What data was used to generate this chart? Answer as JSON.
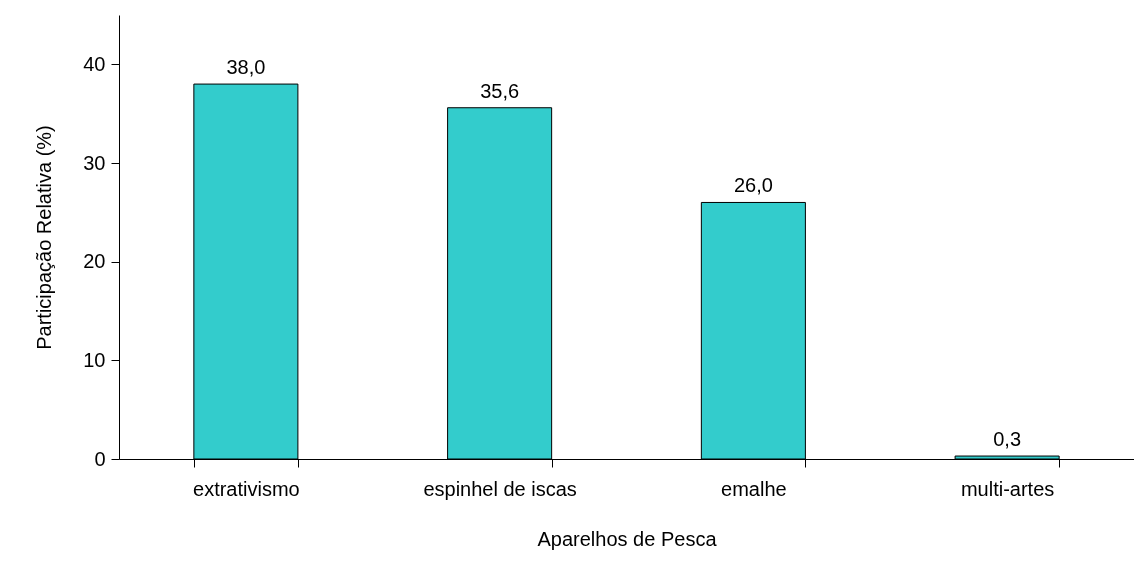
{
  "chart_data": {
    "type": "bar",
    "xlabel": "Aparelhos de Pesca",
    "ylabel": "Participação Relativa (%)",
    "categories": [
      "extrativismo",
      "espinhel de iscas",
      "emalhe",
      "multi-artes"
    ],
    "values": [
      38.0,
      35.6,
      26.0,
      0.3
    ],
    "value_labels": [
      "38,0",
      "35,6",
      "26,0",
      "0,3"
    ],
    "color": "#33cccc",
    "ylim": [
      0,
      45
    ],
    "yticks": [
      0,
      10,
      20,
      30,
      40
    ],
    "grid": false
  }
}
